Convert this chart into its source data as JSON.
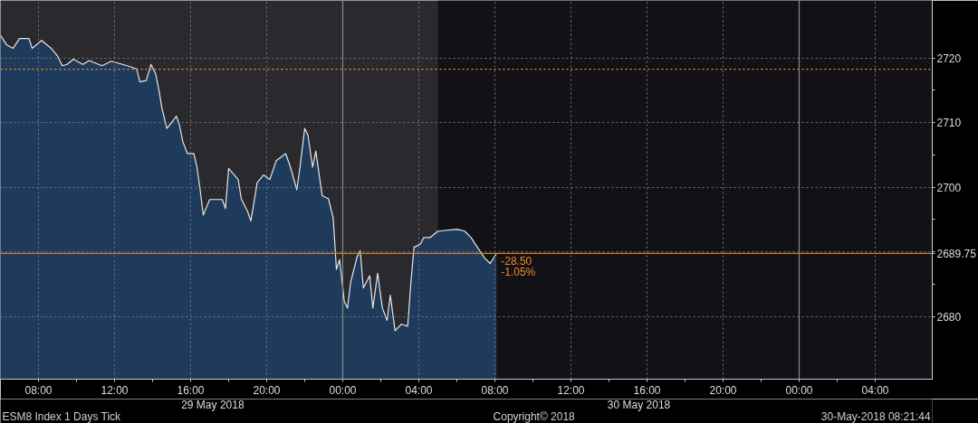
{
  "chart_data": {
    "type": "area",
    "x": [
      "2018-05-29T06:00",
      "2018-05-29T06:20",
      "2018-05-29T06:40",
      "2018-05-29T07:00",
      "2018-05-29T07:30",
      "2018-05-29T07:40",
      "2018-05-29T08:10",
      "2018-05-29T08:40",
      "2018-05-29T09:00",
      "2018-05-29T09:15",
      "2018-05-29T09:30",
      "2018-05-29T09:50",
      "2018-05-29T10:20",
      "2018-05-29T10:40",
      "2018-05-29T11:20",
      "2018-05-29T11:50",
      "2018-05-29T12:40",
      "2018-05-29T13:10",
      "2018-05-29T13:20",
      "2018-05-29T13:40",
      "2018-05-29T13:55",
      "2018-05-29T14:10",
      "2018-05-29T14:20",
      "2018-05-29T14:30",
      "2018-05-29T14:45",
      "2018-05-29T15:00",
      "2018-05-29T15:15",
      "2018-05-29T15:25",
      "2018-05-29T15:35",
      "2018-05-29T15:50",
      "2018-05-29T16:10",
      "2018-05-29T16:20",
      "2018-05-29T16:30",
      "2018-05-29T16:40",
      "2018-05-29T17:00",
      "2018-05-29T17:40",
      "2018-05-29T17:50",
      "2018-05-29T18:00",
      "2018-05-29T18:30",
      "2018-05-29T18:40",
      "2018-05-29T19:00",
      "2018-05-29T19:10",
      "2018-05-29T19:20",
      "2018-05-29T19:30",
      "2018-05-29T19:50",
      "2018-05-29T20:10",
      "2018-05-29T20:30",
      "2018-05-29T21:00",
      "2018-05-29T21:15",
      "2018-05-29T21:35",
      "2018-05-29T21:45",
      "2018-05-29T22:00",
      "2018-05-29T22:10",
      "2018-05-29T22:25",
      "2018-05-29T22:35",
      "2018-05-29T22:55",
      "2018-05-29T23:15",
      "2018-05-29T23:30",
      "2018-05-29T23:40",
      "2018-05-29T23:50",
      "2018-05-30T00:05",
      "2018-05-30T00:15",
      "2018-05-30T00:25",
      "2018-05-30T00:45",
      "2018-05-30T00:55",
      "2018-05-30T01:05",
      "2018-05-30T01:25",
      "2018-05-30T01:35",
      "2018-05-30T01:50",
      "2018-05-30T02:05",
      "2018-05-30T02:20",
      "2018-05-30T02:30",
      "2018-05-30T02:45",
      "2018-05-30T03:05",
      "2018-05-30T03:25",
      "2018-05-30T03:35",
      "2018-05-30T03:45",
      "2018-05-30T04:05",
      "2018-05-30T04:15",
      "2018-05-30T04:35",
      "2018-05-30T05:00",
      "2018-05-30T06:00",
      "2018-05-30T06:25",
      "2018-05-30T06:45",
      "2018-05-30T07:05",
      "2018-05-30T07:25",
      "2018-05-30T07:45",
      "2018-05-30T08:05"
    ],
    "series": [
      {
        "color": "#1f3b5c",
        "values": [
          2723.5,
          2722.0,
          2721.5,
          2723.0,
          2723.0,
          2721.5,
          2722.7,
          2721.5,
          2720.3,
          2718.8,
          2719.0,
          2719.8,
          2719.0,
          2719.6,
          2718.8,
          2719.5,
          2718.8,
          2718.3,
          2716.3,
          2716.5,
          2719.0,
          2717.5,
          2715.0,
          2712.1,
          2709.1,
          2710.0,
          2711.0,
          2709.6,
          2707.1,
          2705.2,
          2705.2,
          2703.1,
          2699.6,
          2695.7,
          2698.1,
          2698.1,
          2696.7,
          2702.9,
          2701.2,
          2698.2,
          2696.2,
          2694.8,
          2697.7,
          2700.7,
          2701.9,
          2701.2,
          2704.1,
          2705.2,
          2703.1,
          2699.6,
          2703.1,
          2709.1,
          2708.1,
          2703.1,
          2705.6,
          2698.7,
          2698.2,
          2695.2,
          2687.3,
          2688.8,
          2682.3,
          2681.3,
          2685.3,
          2689.2,
          2690.2,
          2684.4,
          2686.3,
          2681.3,
          2686.7,
          2681.3,
          2679.4,
          2683.3,
          2677.8,
          2678.8,
          2678.5,
          2685.3,
          2690.7,
          2691.2,
          2692.2,
          2692.2,
          2693.2,
          2693.5,
          2693.2,
          2692.2,
          2690.7,
          2689.2,
          2688.2,
          2689.75
        ]
      }
    ],
    "xlim": [
      "2018-05-29T06:00",
      "2018-05-31T07:00"
    ],
    "xticks": [
      {
        "value": "2018-05-29T08:00",
        "label": "08:00"
      },
      {
        "value": "2018-05-29T12:00",
        "label": "12:00"
      },
      {
        "value": "2018-05-29T16:00",
        "label": "16:00"
      },
      {
        "value": "2018-05-29T20:00",
        "label": "20:00"
      },
      {
        "value": "2018-05-30T00:00",
        "label": "00:00"
      },
      {
        "value": "2018-05-30T04:00",
        "label": "04:00"
      },
      {
        "value": "2018-05-30T08:00",
        "label": "08:00"
      },
      {
        "value": "2018-05-30T12:00",
        "label": "12:00"
      },
      {
        "value": "2018-05-30T16:00",
        "label": "16:00"
      },
      {
        "value": "2018-05-30T20:00",
        "label": "20:00"
      },
      {
        "value": "2018-05-31T00:00",
        "label": "00:00"
      },
      {
        "value": "2018-05-31T04:00",
        "label": "04:00"
      }
    ],
    "ylim": [
      2670.3,
      2728.9
    ],
    "yticks": [
      2680,
      {
        "value": 2690,
        "label": null
      },
      2700,
      2710,
      2720
    ],
    "grid": true,
    "bands": [
      {
        "axis": "x",
        "from": "2018-05-30T05:00",
        "to": "2018-05-31T07:00",
        "color": "#111116"
      }
    ],
    "ref_lines": [
      {
        "axis": "y",
        "value": 2718.25,
        "color": "#f7941d",
        "line_style": "dotted"
      },
      {
        "axis": "y",
        "value": 2689.75,
        "label": "2689.75",
        "color": "#e07b2a",
        "line_style": "solid"
      }
    ],
    "annotations": [
      {
        "text": "-28.50",
        "x": "2018-05-30T08:05",
        "y": 2689.75
      },
      {
        "text": "-1.05%",
        "x": "2018-05-30T08:05",
        "y": 2689.75
      },
      "29 May 2018",
      "30 May 2018",
      "ESM8 Index 1 Days Tick",
      "Copyright© 2018",
      "30-May-2018 08:21:44"
    ]
  }
}
